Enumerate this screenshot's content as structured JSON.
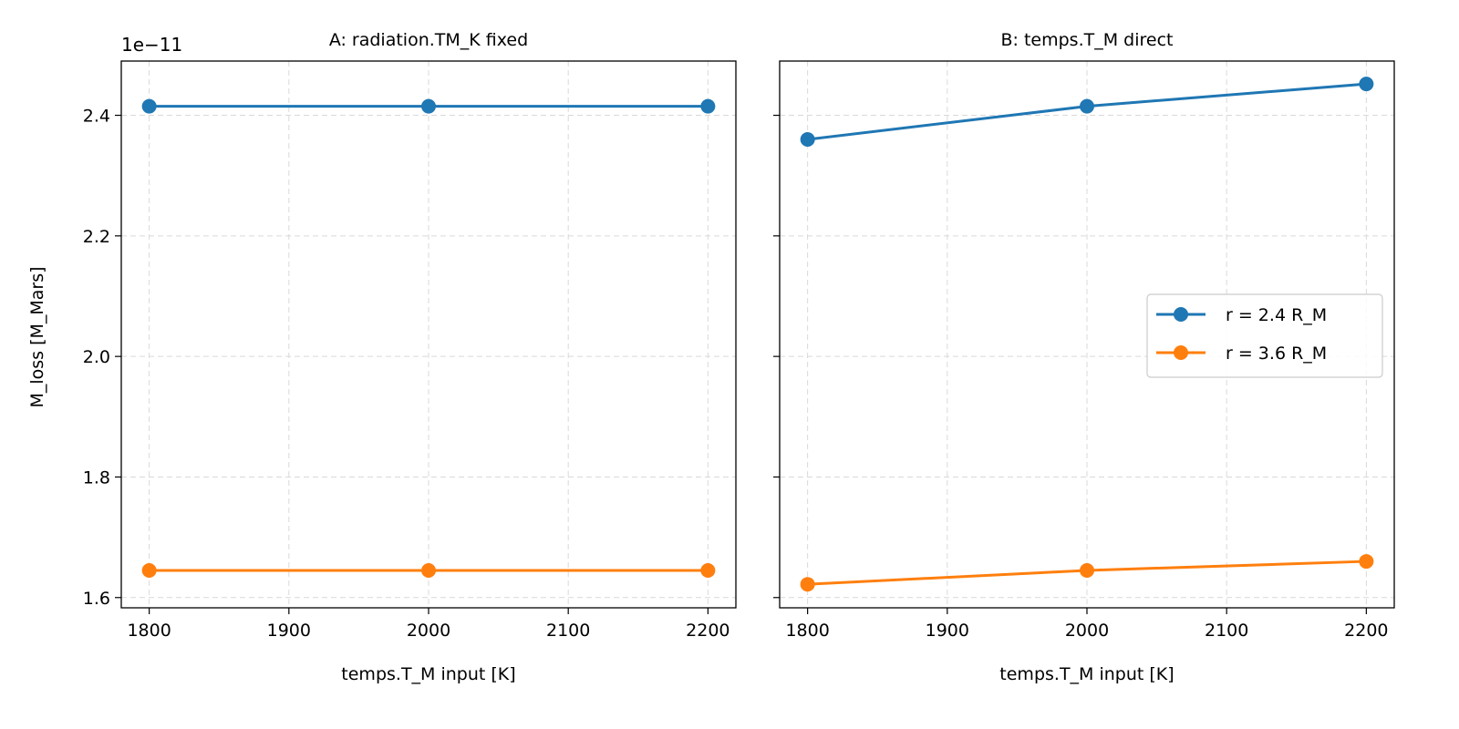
{
  "figure": {
    "ylabel": "M_loss [M_Mars]",
    "offset_text": "1e−11"
  },
  "chart_data": [
    {
      "type": "line",
      "title": "A: radiation.TM_K fixed",
      "xlabel": "temps.T_M input [K]",
      "ylabel": "M_loss [M_Mars]",
      "y_scale_note": "1e−11",
      "x": [
        1800,
        2000,
        2200
      ],
      "xlim": [
        1780,
        2220
      ],
      "ylim": [
        1.583,
        2.49
      ],
      "xticks": [
        1800,
        1900,
        2000,
        2100,
        2200
      ],
      "yticks": [
        1.6,
        1.8,
        2.0,
        2.2,
        2.4
      ],
      "ytick_labels": [
        "1.6",
        "1.8",
        "2.0",
        "2.2",
        "2.4"
      ],
      "grid": true,
      "series": [
        {
          "name": "r = 2.4 R_M",
          "color": "#1f77b4",
          "values": [
            2.415,
            2.415,
            2.415
          ]
        },
        {
          "name": "r = 3.6 R_M",
          "color": "#ff7f0e",
          "values": [
            1.645,
            1.645,
            1.645
          ]
        }
      ]
    },
    {
      "type": "line",
      "title": "B: temps.T_M direct",
      "xlabel": "temps.T_M input [K]",
      "x": [
        1800,
        2000,
        2200
      ],
      "xlim": [
        1780,
        2220
      ],
      "ylim": [
        1.583,
        2.49
      ],
      "xticks": [
        1800,
        1900,
        2000,
        2100,
        2200
      ],
      "yticks": [
        1.6,
        1.8,
        2.0,
        2.2,
        2.4
      ],
      "grid": true,
      "legend": "center-right",
      "series": [
        {
          "name": "r = 2.4 R_M",
          "color": "#1f77b4",
          "values": [
            2.36,
            2.415,
            2.452
          ]
        },
        {
          "name": "r = 3.6 R_M",
          "color": "#ff7f0e",
          "values": [
            1.622,
            1.645,
            1.66
          ]
        }
      ]
    }
  ]
}
